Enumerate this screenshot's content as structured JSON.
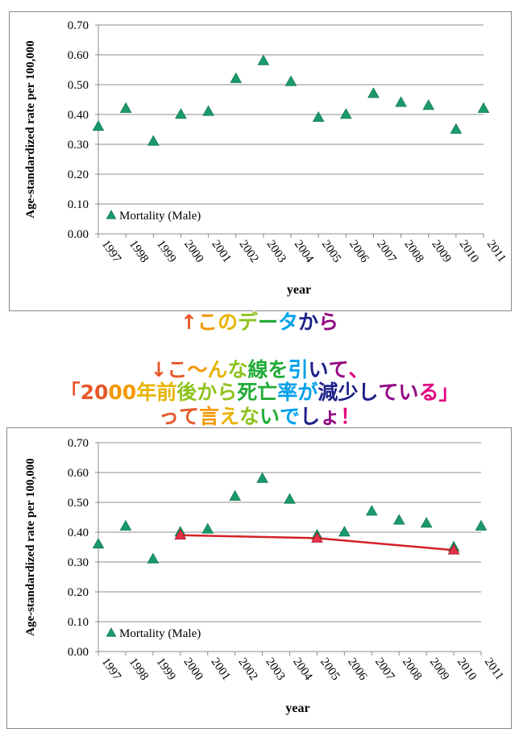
{
  "captions": {
    "line1": "↑このデータから",
    "line2": "↓こ～んな線を引いて、",
    "line3": "「2000年前後から死亡率が減少している」",
    "line4": "って言えないでしょ！"
  },
  "colors": {
    "marker": "#1a9a6a",
    "trend_marker": "#e8334a",
    "trend_line": "#d42026",
    "grid": "#8c8c8c",
    "rainbow": [
      "#e8582a",
      "#f39800",
      "#e8b400",
      "#8fc31f",
      "#22ac38",
      "#00a0e9",
      "#1d2088",
      "#920783",
      "#e4007f"
    ]
  },
  "chart_data": [
    {
      "type": "scatter",
      "title": "",
      "xlabel": "year",
      "ylabel": "Age-standardized rate per 100,000",
      "ylim": [
        0,
        0.7
      ],
      "yticks": [
        "0.00",
        "0.10",
        "0.20",
        "0.30",
        "0.40",
        "0.50",
        "0.60",
        "0.70"
      ],
      "grid": true,
      "legend": "bottom-left",
      "categories": [
        "1997",
        "1998",
        "1999",
        "2000",
        "2001",
        "2002",
        "2003",
        "2004",
        "2005",
        "2006",
        "2007",
        "2008",
        "2009",
        "2010",
        "2011"
      ],
      "series": [
        {
          "name": "Mortality (Male)",
          "marker": "triangle",
          "values": [
            0.36,
            0.42,
            0.31,
            0.4,
            0.41,
            0.52,
            0.58,
            0.51,
            0.39,
            0.4,
            0.47,
            0.44,
            0.43,
            0.35,
            0.42
          ]
        }
      ]
    },
    {
      "type": "scatter",
      "title": "",
      "xlabel": "year",
      "ylabel": "Age-standardized rate per 100,000",
      "ylim": [
        0,
        0.7
      ],
      "yticks": [
        "0.00",
        "0.10",
        "0.20",
        "0.30",
        "0.40",
        "0.50",
        "0.60",
        "0.70"
      ],
      "grid": true,
      "legend": "bottom-left",
      "categories": [
        "1997",
        "1998",
        "1999",
        "2000",
        "2001",
        "2002",
        "2003",
        "2004",
        "2005",
        "2006",
        "2007",
        "2008",
        "2009",
        "2010",
        "2011"
      ],
      "series": [
        {
          "name": "Mortality (Male)",
          "marker": "triangle",
          "values": [
            0.36,
            0.42,
            0.31,
            0.4,
            0.41,
            0.52,
            0.58,
            0.51,
            0.39,
            0.4,
            0.47,
            0.44,
            0.43,
            0.35,
            0.42
          ]
        }
      ],
      "trend_line": {
        "x": [
          "2000",
          "2005",
          "2010"
        ],
        "values": [
          0.39,
          0.38,
          0.34
        ]
      }
    }
  ]
}
